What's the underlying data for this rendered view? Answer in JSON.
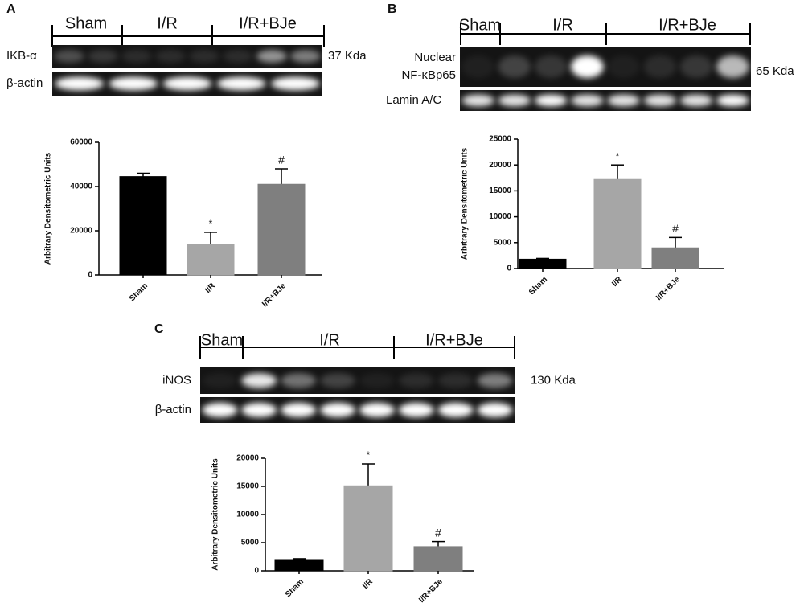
{
  "chart_data": [
    {
      "type": "bar",
      "ylabel": "Arbitrary Densitometric Units",
      "categories": [
        "Sham",
        "I/R",
        "I/R+BJe"
      ],
      "values": [
        44500,
        14000,
        41000
      ],
      "errors": [
        1500,
        5300,
        7000
      ],
      "colors": [
        "#000000",
        "#a6a6a6",
        "#7f7f7f"
      ],
      "ylim": [
        0,
        60000
      ],
      "yticks": [
        0,
        20000,
        40000,
        60000
      ],
      "annotations": [
        {
          "text": "*",
          "category": "I/R"
        },
        {
          "text": "#",
          "category": "I/R+BJe"
        }
      ]
    },
    {
      "type": "bar",
      "ylabel": "Arbitrary Densitometric Units",
      "categories": [
        "Sham",
        "I/R",
        "I/R+BJe"
      ],
      "values": [
        1800,
        17200,
        4000
      ],
      "errors": [
        150,
        2800,
        2000
      ],
      "colors": [
        "#000000",
        "#a6a6a6",
        "#7f7f7f"
      ],
      "ylim": [
        0,
        25000
      ],
      "yticks": [
        0,
        5000,
        10000,
        15000,
        20000,
        25000
      ],
      "annotations": [
        {
          "text": "*",
          "category": "I/R"
        },
        {
          "text": "#",
          "category": "I/R+BJe"
        }
      ]
    },
    {
      "type": "bar",
      "ylabel": "Arbitrary Densitometric Units",
      "categories": [
        "Sham",
        "I/R",
        "I/R+BJe"
      ],
      "values": [
        2000,
        15100,
        4300
      ],
      "errors": [
        150,
        3900,
        900
      ],
      "colors": [
        "#000000",
        "#a6a6a6",
        "#7f7f7f"
      ],
      "ylim": [
        0,
        20000
      ],
      "yticks": [
        0,
        5000,
        10000,
        15000,
        20000
      ],
      "annotations": [
        {
          "text": "*",
          "category": "I/R"
        },
        {
          "text": "#",
          "category": "I/R+BJe"
        }
      ]
    }
  ],
  "blots": [
    {
      "panel": "A",
      "groups": [
        "Sham",
        "I/R",
        "I/R+BJe"
      ],
      "rows": [
        {
          "label": [
            "IKB-α"
          ],
          "size": "37 Kda"
        },
        {
          "label": [
            "β-actin"
          ]
        }
      ]
    },
    {
      "panel": "B",
      "groups": [
        "Sham",
        "I/R",
        "I/R+BJe"
      ],
      "rows": [
        {
          "label": [
            "Nuclear",
            "NF-κBp65"
          ],
          "size": "65 Kda"
        },
        {
          "label": [
            "Lamin A/C"
          ]
        }
      ]
    },
    {
      "panel": "C",
      "groups": [
        "Sham",
        "I/R",
        "I/R+BJe"
      ],
      "rows": [
        {
          "label": [
            "iNOS"
          ],
          "size": "130 Kda"
        },
        {
          "label": [
            "β-actin"
          ]
        }
      ]
    }
  ]
}
